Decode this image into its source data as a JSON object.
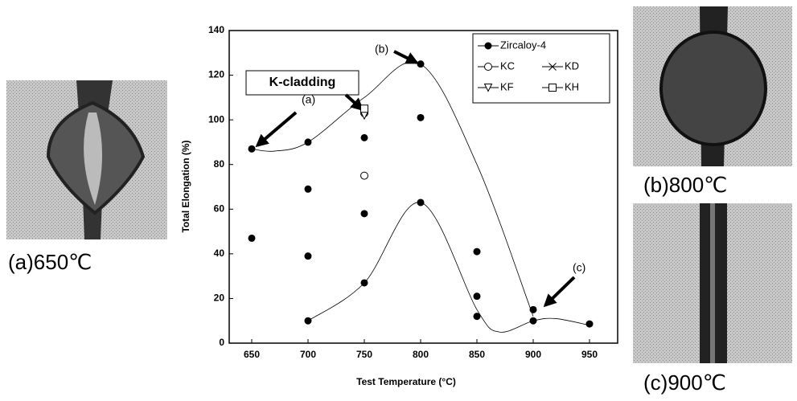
{
  "chart_data": {
    "type": "scatter",
    "xlabel": "Test Temperature (°C)",
    "ylabel": "Total Elongation (%)",
    "xlim": [
      630,
      975
    ],
    "xticks": [
      650,
      700,
      750,
      800,
      850,
      900,
      950
    ],
    "ylim": [
      0,
      140
    ],
    "yticks": [
      0,
      20,
      40,
      60,
      80,
      100,
      120,
      140
    ],
    "series": [
      {
        "name": "Zircaloy-4",
        "marker": "circle-filled",
        "color": "#000000",
        "x": [
          650,
          650,
          700,
          700,
          700,
          700,
          750,
          750,
          750,
          800,
          800,
          800,
          850,
          850,
          850,
          900,
          900,
          950
        ],
        "values": [
          87,
          47,
          90,
          69,
          39,
          10,
          92,
          58,
          27,
          125,
          101,
          63,
          41,
          21,
          12,
          15,
          10,
          8.6
        ]
      },
      {
        "name": "KC",
        "marker": "circle-open",
        "color": "#000000",
        "x": [
          750,
          750
        ],
        "values": [
          75,
          103
        ]
      },
      {
        "name": "KD",
        "marker": "cross",
        "color": "#000000",
        "x": [
          750
        ],
        "values": [
          104
        ]
      },
      {
        "name": "KF",
        "marker": "triangle-down-open",
        "color": "#000000",
        "x": [
          750
        ],
        "values": [
          102
        ]
      },
      {
        "name": "KH",
        "marker": "square-open",
        "color": "#000000",
        "x": [
          750
        ],
        "values": [
          105
        ]
      }
    ],
    "trend_lines": [
      {
        "x": [
          650,
          670,
          700,
          750,
          800,
          850,
          900
        ],
        "values": [
          87,
          86,
          90,
          110,
          125,
          80,
          12
        ]
      },
      {
        "x": [
          700,
          750,
          800,
          850,
          870,
          900,
          920,
          950
        ],
        "values": [
          10,
          27,
          63,
          15,
          5,
          10,
          11,
          8
        ]
      }
    ],
    "annotations": [
      "(a)",
      "(b)",
      "(c)",
      "K-cladding"
    ],
    "captions": [
      "(a)650℃",
      "(b)800℃",
      "(c)900℃"
    ]
  }
}
